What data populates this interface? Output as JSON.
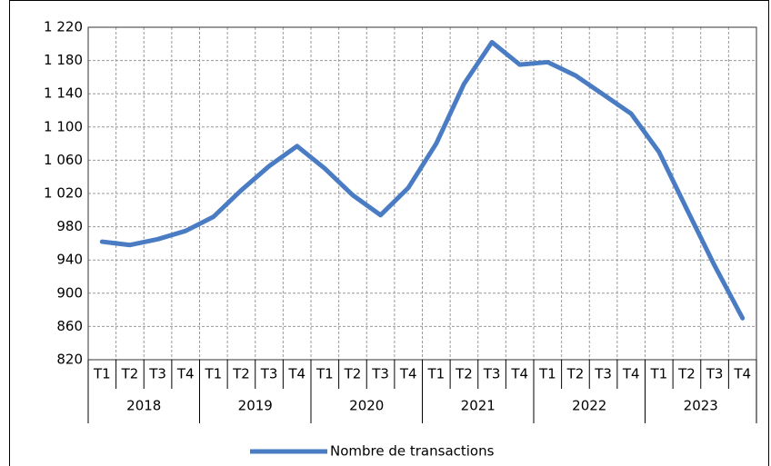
{
  "chart_data": {
    "type": "line",
    "categories": [
      "T1",
      "T2",
      "T3",
      "T4",
      "T1",
      "T2",
      "T3",
      "T4",
      "T1",
      "T2",
      "T3",
      "T4",
      "T1",
      "T2",
      "T3",
      "T4",
      "T1",
      "T2",
      "T3",
      "T4",
      "T1",
      "T2",
      "T3",
      "T4"
    ],
    "groups": [
      "2018",
      "2019",
      "2020",
      "2021",
      "2022",
      "2023"
    ],
    "series": [
      {
        "name": "Nombre de transactions",
        "color": "#4a7cc4",
        "values": [
          962,
          958,
          965,
          975,
          992,
          1024,
          1053,
          1077,
          1050,
          1018,
          994,
          1027,
          1080,
          1152,
          1202,
          1175,
          1178,
          1162,
          1139,
          1116,
          1070,
          1001,
          933,
          870
        ]
      }
    ],
    "ylim": [
      820,
      1220
    ],
    "yticks": [
      820,
      860,
      900,
      940,
      980,
      {
        "value": 1020,
        "label": "1 020"
      },
      {
        "value": 1060,
        "label": "1 060"
      },
      {
        "value": 1100,
        "label": "1 100"
      },
      {
        "value": 1140,
        "label": "1 140"
      },
      {
        "value": 1180,
        "label": "1 180"
      },
      {
        "value": 1220,
        "label": "1 220"
      }
    ],
    "grid": true,
    "legend": "bottom"
  }
}
